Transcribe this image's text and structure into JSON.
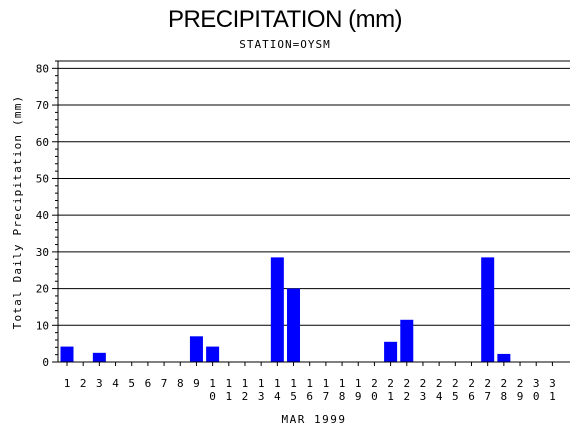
{
  "chart_data": {
    "type": "bar",
    "title": "PRECIPITATION (mm)",
    "subtitle": "STATION=OYSM",
    "xlabel": "MAR 1999",
    "ylabel": "Total Daily Precipitation (mm)",
    "ylim": [
      0,
      82
    ],
    "yticks": [
      0,
      10,
      20,
      30,
      40,
      50,
      60,
      70,
      80
    ],
    "grid": "horizontal",
    "bar_color": "#0000ff",
    "categories": [
      "1",
      "2",
      "3",
      "4",
      "5",
      "6",
      "7",
      "8",
      "9",
      "10",
      "11",
      "12",
      "13",
      "14",
      "15",
      "16",
      "17",
      "18",
      "19",
      "20",
      "21",
      "22",
      "23",
      "24",
      "25",
      "26",
      "27",
      "28",
      "29",
      "30",
      "31"
    ],
    "values": [
      4.2,
      0,
      2.5,
      0,
      0,
      0,
      0,
      0,
      7,
      4.2,
      0,
      0,
      0,
      28.5,
      20,
      0,
      0,
      0,
      0,
      0,
      5.5,
      11.5,
      0,
      0,
      0,
      0,
      28.5,
      2.2,
      0,
      0,
      0
    ]
  }
}
